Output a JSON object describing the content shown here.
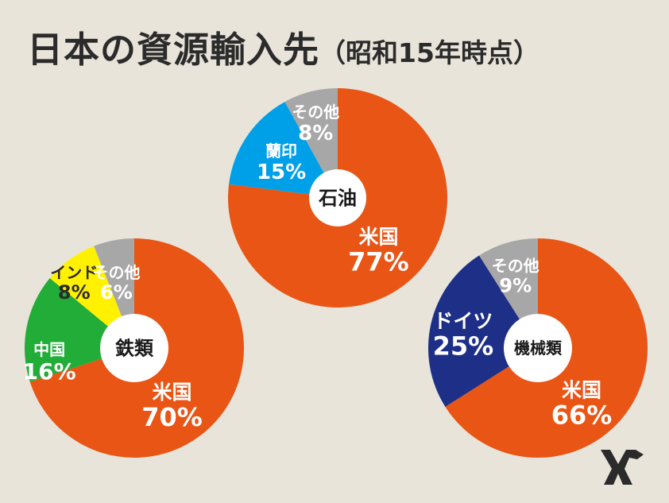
{
  "title": {
    "main": "日本の資源輸入先",
    "sub": "（昭和15年時点）"
  },
  "colors": {
    "background": "#e9e4da",
    "usa": "#e95514",
    "other": "#a7a7a7",
    "dutch_indies": "#00a0e9",
    "china": "#22ac38",
    "india": "#fff100",
    "germany": "#1d2f87",
    "center": "#ffffff"
  },
  "chart_data": [
    {
      "type": "pie",
      "title": "石油",
      "slices": [
        {
          "label": "米国",
          "value": 77,
          "value_label": "77%",
          "color_key": "usa"
        },
        {
          "label": "蘭印",
          "value": 15,
          "value_label": "15%",
          "color_key": "dutch_indies"
        },
        {
          "label": "その他",
          "value": 8,
          "value_label": "8%",
          "color_key": "other"
        }
      ]
    },
    {
      "type": "pie",
      "title": "鉄類",
      "slices": [
        {
          "label": "米国",
          "value": 70,
          "value_label": "70%",
          "color_key": "usa"
        },
        {
          "label": "中国",
          "value": 16,
          "value_label": "16%",
          "color_key": "china"
        },
        {
          "label": "インド",
          "value": 8,
          "value_label": "8%",
          "color_key": "india"
        },
        {
          "label": "その他",
          "value": 6,
          "value_label": "6%",
          "color_key": "other"
        }
      ]
    },
    {
      "type": "pie",
      "title": "機械類",
      "slices": [
        {
          "label": "米国",
          "value": 66,
          "value_label": "66%",
          "color_key": "usa"
        },
        {
          "label": "ドイツ",
          "value": 25,
          "value_label": "25%",
          "color_key": "germany"
        },
        {
          "label": "その他",
          "value": 9,
          "value_label": "9%",
          "color_key": "other"
        }
      ]
    }
  ]
}
